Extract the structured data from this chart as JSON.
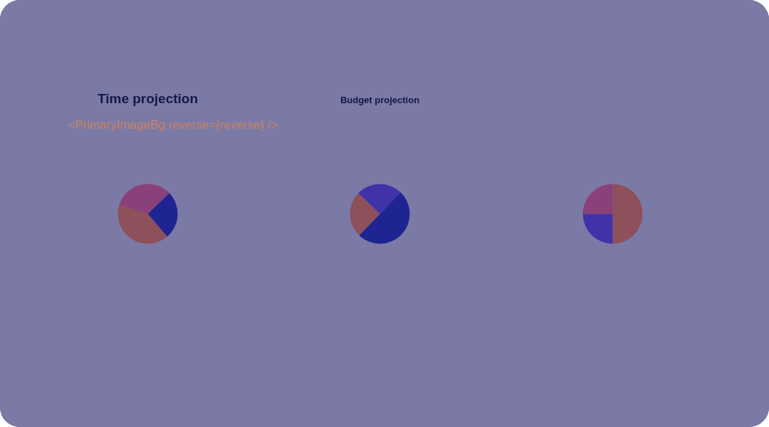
{
  "chart_data": [
    {
      "type": "pie",
      "title": "Time projection",
      "annotations": [
        "<PrimaryImageBg reverse={reverse} />"
      ],
      "categories": [
        null,
        null,
        null
      ],
      "values": [
        26,
        41,
        33
      ],
      "colors": [
        "#1e2491",
        "#8e505a",
        "#8a4078"
      ]
    },
    {
      "type": "pie",
      "title": "Budget projection",
      "categories": [
        null,
        null,
        null
      ],
      "values": [
        50,
        25,
        25
      ],
      "colors": [
        "#1e2491",
        "#8e505a",
        "#4032a8"
      ]
    },
    {
      "type": "pie",
      "categories": [
        null,
        null,
        null
      ],
      "values": [
        50,
        25,
        25
      ],
      "colors": [
        "#8e505a",
        "#4032a8",
        "#8a4078"
      ]
    }
  ]
}
